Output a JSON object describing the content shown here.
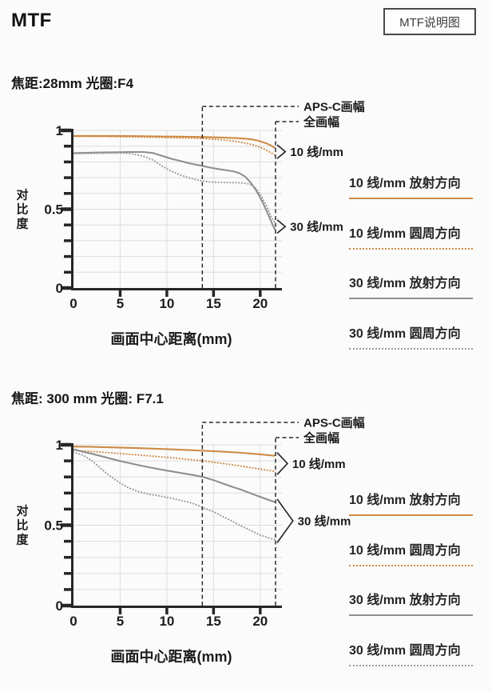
{
  "header": {
    "title": "MTF",
    "button_label": "MTF说明图"
  },
  "legend": {
    "items": [
      {
        "label": "10 线/mm 放射方向",
        "color": "#CE8B45",
        "line": "solid"
      },
      {
        "label": "10 线/mm 圆周方向",
        "color": "#CE8B45",
        "line": "dotted"
      },
      {
        "label": "30 线/mm 放射方向",
        "color": "#8F8F8F",
        "line": "solid"
      },
      {
        "label": "30 线/mm 圆周方向",
        "color": "#9A9A9A",
        "line": "dotted"
      }
    ]
  },
  "chart_data": [
    {
      "type": "line",
      "title": "焦距:28mm 光圈:F4",
      "xlabel": "画面中心距离(mm)",
      "ylabel": "对比度",
      "xlim": [
        0,
        22.3
      ],
      "ylim": [
        0,
        1
      ],
      "xticks": [
        0,
        5,
        10,
        15,
        20
      ],
      "yticks": [
        1,
        0.5,
        0
      ],
      "grid": true,
      "frame_markers": [
        {
          "label": "APS-C画幅",
          "x_mm": 13.8
        },
        {
          "label": "全画幅",
          "x_mm": 21.64
        }
      ],
      "bracket_labels": [
        {
          "label": "10 线/mm",
          "series": [
            0,
            1
          ]
        },
        {
          "label": "30 线/mm",
          "series": [
            2,
            3
          ]
        }
      ],
      "series": [
        {
          "name": "10 线/mm 放射方向",
          "color": "#CE8B45",
          "line": "solid",
          "points": [
            [
              0,
              0.965
            ],
            [
              3,
              0.965
            ],
            [
              6,
              0.964
            ],
            [
              9,
              0.962
            ],
            [
              12,
              0.96
            ],
            [
              14,
              0.958
            ],
            [
              16,
              0.955
            ],
            [
              17.5,
              0.951
            ],
            [
              18.5,
              0.947
            ],
            [
              19.3,
              0.941
            ],
            [
              20,
              0.931
            ],
            [
              20.7,
              0.917
            ],
            [
              21.2,
              0.903
            ],
            [
              21.6,
              0.888
            ]
          ]
        },
        {
          "name": "10 线/mm 圆周方向",
          "color": "#CE8B45",
          "line": "dotted",
          "points": [
            [
              0,
              0.962
            ],
            [
              3,
              0.961
            ],
            [
              6,
              0.959
            ],
            [
              9,
              0.956
            ],
            [
              12,
              0.952
            ],
            [
              14,
              0.948
            ],
            [
              16,
              0.94
            ],
            [
              17.5,
              0.93
            ],
            [
              18.5,
              0.919
            ],
            [
              19.3,
              0.907
            ],
            [
              20,
              0.893
            ],
            [
              20.7,
              0.873
            ],
            [
              21.2,
              0.857
            ],
            [
              21.6,
              0.842
            ]
          ]
        },
        {
          "name": "30 线/mm 放射方向",
          "color": "#8F8F8F",
          "line": "solid",
          "points": [
            [
              0,
              0.856
            ],
            [
              2,
              0.859
            ],
            [
              4,
              0.861
            ],
            [
              6,
              0.863
            ],
            [
              7.5,
              0.863
            ],
            [
              8.5,
              0.857
            ],
            [
              9.5,
              0.838
            ],
            [
              10.5,
              0.82
            ],
            [
              11.5,
              0.805
            ],
            [
              12.5,
              0.79
            ],
            [
              13.5,
              0.778
            ],
            [
              14.5,
              0.766
            ],
            [
              15.5,
              0.755
            ],
            [
              16.5,
              0.746
            ],
            [
              17.2,
              0.739
            ],
            [
              17.8,
              0.728
            ],
            [
              18.4,
              0.706
            ],
            [
              19,
              0.667
            ],
            [
              19.6,
              0.617
            ],
            [
              20.2,
              0.552
            ],
            [
              20.8,
              0.473
            ],
            [
              21.3,
              0.405
            ],
            [
              21.6,
              0.368
            ]
          ]
        },
        {
          "name": "30 线/mm 圆周方向",
          "color": "#9A9A9A",
          "line": "dotted",
          "points": [
            [
              0,
              0.853
            ],
            [
              2,
              0.854
            ],
            [
              4,
              0.856
            ],
            [
              5.5,
              0.856
            ],
            [
              6.5,
              0.849
            ],
            [
              7.5,
              0.836
            ],
            [
              8.5,
              0.812
            ],
            [
              9.5,
              0.773
            ],
            [
              10.5,
              0.74
            ],
            [
              11.5,
              0.716
            ],
            [
              12.5,
              0.697
            ],
            [
              13.5,
              0.682
            ],
            [
              14.5,
              0.673
            ],
            [
              15.5,
              0.67
            ],
            [
              16.5,
              0.669
            ],
            [
              17.5,
              0.668
            ],
            [
              18.3,
              0.666
            ],
            [
              18.9,
              0.659
            ],
            [
              19.5,
              0.634
            ],
            [
              20.1,
              0.585
            ],
            [
              20.7,
              0.519
            ],
            [
              21.2,
              0.449
            ],
            [
              21.6,
              0.412
            ]
          ]
        }
      ]
    },
    {
      "type": "line",
      "title": "焦距: 300 mm 光圈: F7.1",
      "xlabel": "画面中心距离(mm)",
      "ylabel": "对比度",
      "xlim": [
        0,
        22.3
      ],
      "ylim": [
        0,
        1
      ],
      "xticks": [
        0,
        5,
        10,
        15,
        20
      ],
      "yticks": [
        1,
        0.5,
        0
      ],
      "grid": true,
      "frame_markers": [
        {
          "label": "APS-C画幅",
          "x_mm": 13.8
        },
        {
          "label": "全画幅",
          "x_mm": 21.64
        }
      ],
      "bracket_labels": [
        {
          "label": "10 线/mm",
          "series": [
            0,
            1
          ]
        },
        {
          "label": "30 线/mm",
          "series": [
            2,
            3
          ]
        }
      ],
      "series": [
        {
          "name": "10 线/mm 放射方向",
          "color": "#CE8B45",
          "line": "solid",
          "points": [
            [
              0,
              0.989
            ],
            [
              2,
              0.987
            ],
            [
              4,
              0.984
            ],
            [
              6,
              0.981
            ],
            [
              8,
              0.977
            ],
            [
              10,
              0.973
            ],
            [
              12,
              0.968
            ],
            [
              14,
              0.963
            ],
            [
              16,
              0.957
            ],
            [
              18,
              0.95
            ],
            [
              20,
              0.941
            ],
            [
              21.6,
              0.932
            ]
          ]
        },
        {
          "name": "10 线/mm 圆周方向",
          "color": "#CE8B45",
          "line": "dotted",
          "points": [
            [
              0,
              0.966
            ],
            [
              2,
              0.958
            ],
            [
              4,
              0.95
            ],
            [
              6,
              0.941
            ],
            [
              8,
              0.932
            ],
            [
              10,
              0.922
            ],
            [
              12,
              0.911
            ],
            [
              14,
              0.899
            ],
            [
              16,
              0.884
            ],
            [
              18,
              0.867
            ],
            [
              20,
              0.849
            ],
            [
              21.6,
              0.835
            ]
          ]
        },
        {
          "name": "30 线/mm 放射方向",
          "color": "#8F8F8F",
          "line": "solid",
          "points": [
            [
              0,
              0.972
            ],
            [
              1,
              0.957
            ],
            [
              2,
              0.944
            ],
            [
              3,
              0.929
            ],
            [
              4,
              0.914
            ],
            [
              5,
              0.899
            ],
            [
              6,
              0.886
            ],
            [
              7,
              0.873
            ],
            [
              8,
              0.861
            ],
            [
              9,
              0.85
            ],
            [
              10,
              0.84
            ],
            [
              11,
              0.83
            ],
            [
              12,
              0.82
            ],
            [
              13,
              0.81
            ],
            [
              14,
              0.798
            ],
            [
              15,
              0.78
            ],
            [
              16,
              0.759
            ],
            [
              17,
              0.739
            ],
            [
              18,
              0.72
            ],
            [
              19,
              0.698
            ],
            [
              20,
              0.676
            ],
            [
              21,
              0.655
            ],
            [
              21.6,
              0.643
            ]
          ]
        },
        {
          "name": "30 线/mm 圆周方向",
          "color": "#9A9A9A",
          "line": "dotted",
          "points": [
            [
              0,
              0.953
            ],
            [
              1,
              0.936
            ],
            [
              2,
              0.9
            ],
            [
              3,
              0.848
            ],
            [
              4,
              0.802
            ],
            [
              5,
              0.762
            ],
            [
              6,
              0.73
            ],
            [
              7,
              0.708
            ],
            [
              8,
              0.694
            ],
            [
              9,
              0.684
            ],
            [
              10,
              0.673
            ],
            [
              11,
              0.661
            ],
            [
              12,
              0.648
            ],
            [
              13,
              0.632
            ],
            [
              14,
              0.606
            ],
            [
              15,
              0.583
            ],
            [
              16,
              0.553
            ],
            [
              17,
              0.525
            ],
            [
              18,
              0.494
            ],
            [
              19,
              0.466
            ],
            [
              20,
              0.439
            ],
            [
              21,
              0.419
            ],
            [
              21.6,
              0.411
            ]
          ]
        }
      ]
    }
  ]
}
